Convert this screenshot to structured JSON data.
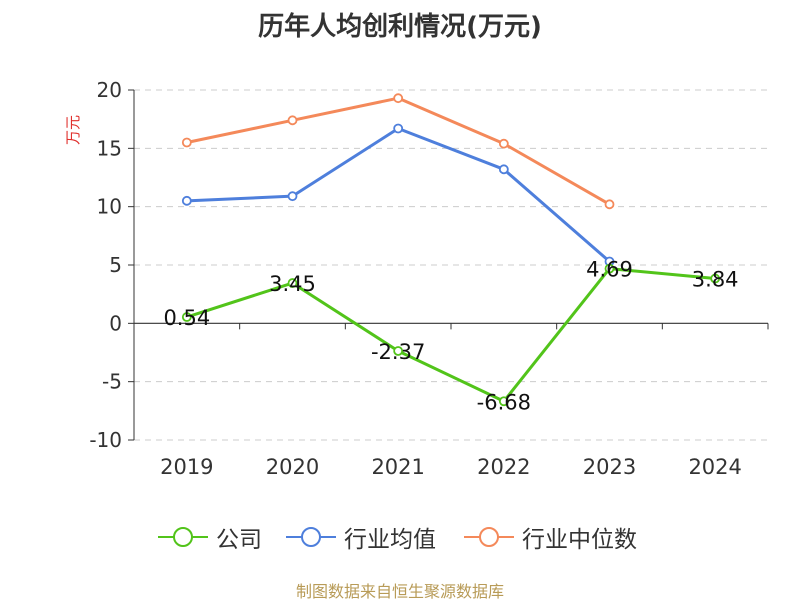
{
  "chart_data": {
    "type": "line",
    "title": "历年人均创利情况(万元)",
    "ylabel": "万元",
    "categories": [
      "2019",
      "2020",
      "2021",
      "2022",
      "2023",
      "2024"
    ],
    "ylim": [
      -10,
      20
    ],
    "yticks": [
      20,
      15,
      10,
      5,
      0,
      -5,
      -10
    ],
    "grid": true,
    "legend_position": "bottom",
    "series": [
      {
        "name": "公司",
        "color": "#52c41a",
        "values": [
          0.54,
          3.45,
          -2.37,
          -6.68,
          4.69,
          3.84
        ],
        "labels": [
          "0.54",
          "3.45",
          "-2.37",
          "-6.68",
          "4.69",
          "3.84"
        ]
      },
      {
        "name": "行业均值",
        "color": "#4e7fdc",
        "values": [
          10.5,
          10.9,
          16.7,
          13.2,
          5.3,
          null
        ]
      },
      {
        "name": "行业中位数",
        "color": "#f4895a",
        "values": [
          15.5,
          17.4,
          19.3,
          15.4,
          10.2,
          null
        ]
      }
    ]
  },
  "legend": {
    "items": [
      "公司",
      "行业均值",
      "行业中位数"
    ]
  },
  "footer": "制图数据来自恒生聚源数据库"
}
